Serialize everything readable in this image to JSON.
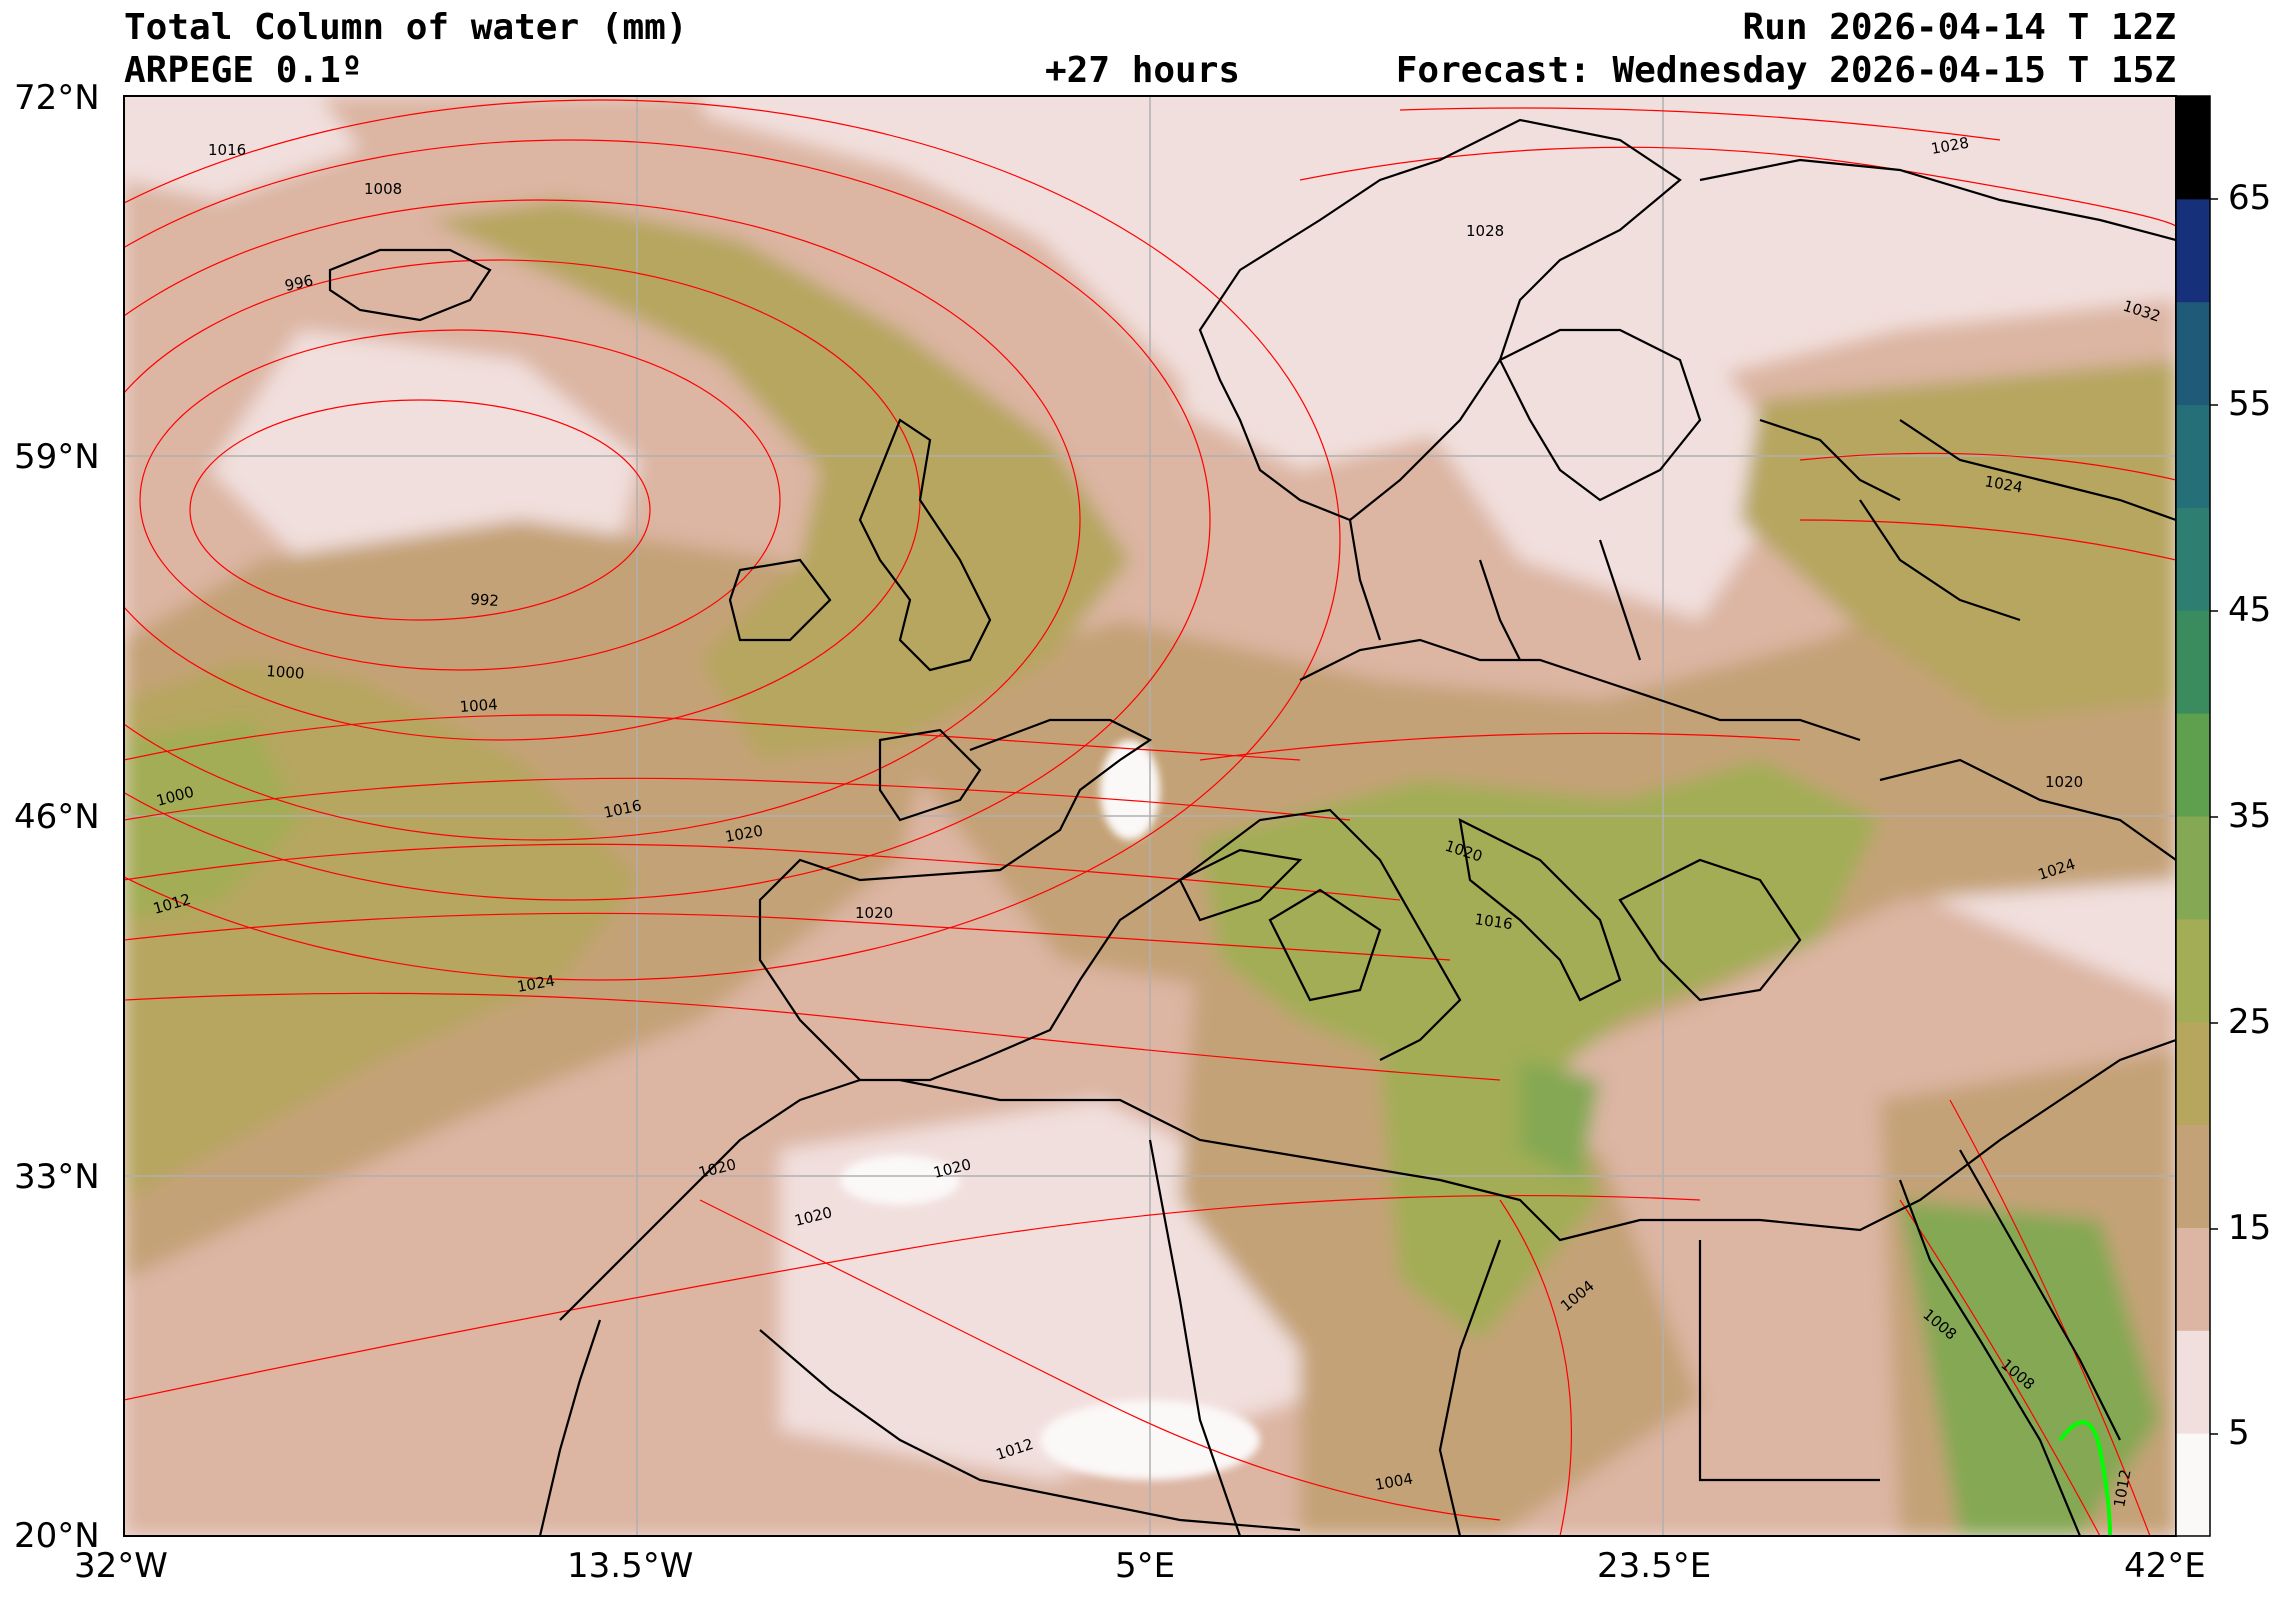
{
  "header": {
    "title": "Total Column of water (mm)",
    "model": "ARPEGE 0.1º",
    "lead_time": "+27 hours",
    "run": "Run 2026-04-14 T 12Z",
    "forecast": "Forecast: Wednesday 2026-04-15 T 15Z"
  },
  "axes": {
    "lat_labels": [
      "72°N",
      "59°N",
      "46°N",
      "33°N",
      "20°N"
    ],
    "lon_labels": [
      "32°W",
      "13.5°W",
      "5°E",
      "23.5°E",
      "42°E"
    ]
  },
  "colorbar": {
    "tick_labels": [
      "5",
      "15",
      "25",
      "35",
      "45",
      "55",
      "65"
    ],
    "colors": [
      "#fbf8f8",
      "#f1dfdd",
      "#dcb5a3",
      "#c4a277",
      "#b6a65e",
      "#a2ad55",
      "#84a853",
      "#5fa04e",
      "#3a8c5e",
      "#2e7e72",
      "#256f79",
      "#1f5a78",
      "#16307a",
      "#000000"
    ]
  },
  "isobar_labels": [
    "1016",
    "1008",
    "996",
    "992",
    "1000",
    "1004",
    "1000",
    "1012",
    "1016",
    "1020",
    "1020",
    "1024",
    "1020",
    "1020",
    "1020",
    "1028",
    "1028",
    "1032",
    "1024",
    "1020",
    "1016",
    "1024",
    "1020",
    "1004",
    "1012",
    "1004",
    "1008",
    "1008",
    "1012"
  ],
  "colors": {
    "isobar": "#ff0000",
    "coastline": "#000000",
    "grid": "#b0b0b0",
    "low_contour": "#00ff00"
  }
}
